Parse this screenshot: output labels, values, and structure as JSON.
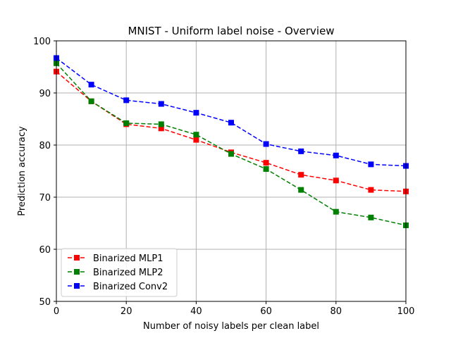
{
  "chart_data": {
    "type": "line",
    "title": "MNIST - Uniform label noise - Overview",
    "xlabel": "Number of noisy labels per clean label",
    "ylabel": "Prediction accuracy",
    "xlim": [
      0,
      100
    ],
    "ylim": [
      50,
      100
    ],
    "xticks": [
      0,
      20,
      40,
      60,
      80,
      100
    ],
    "yticks": [
      50,
      60,
      70,
      80,
      90,
      100
    ],
    "grid": true,
    "legend_position": "lower-left",
    "x": [
      0,
      10,
      20,
      30,
      40,
      50,
      60,
      70,
      80,
      90,
      100
    ],
    "series": [
      {
        "name": "Binarized MLP1",
        "color": "#ff0000",
        "line_style": "dashed",
        "marker": "square",
        "values": [
          94.1,
          88.4,
          84.0,
          83.2,
          81.0,
          78.6,
          76.6,
          74.3,
          73.2,
          71.4,
          71.1
        ]
      },
      {
        "name": "Binarized MLP2",
        "color": "#008000",
        "line_style": "dashed",
        "marker": "square",
        "values": [
          95.7,
          88.4,
          84.2,
          84.0,
          82.0,
          78.3,
          75.4,
          71.4,
          67.2,
          66.1,
          64.6
        ]
      },
      {
        "name": "Binarized Conv2",
        "color": "#0000ff",
        "line_style": "dashed",
        "marker": "square",
        "values": [
          96.7,
          91.6,
          88.6,
          87.9,
          86.2,
          84.3,
          80.2,
          78.8,
          78.0,
          76.3,
          76.0
        ]
      }
    ]
  }
}
